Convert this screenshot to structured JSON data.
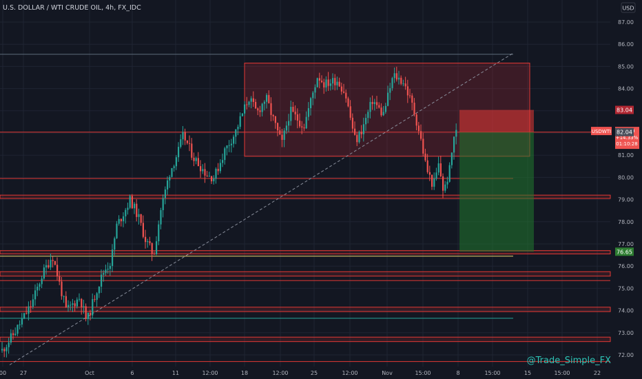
{
  "header": {
    "title": "U.S. DOLLAR / WTI CRUDE OIL, 4h, FX_IDC",
    "currency_button": "USD"
  },
  "watermark": "@Trade_Simple_FX",
  "colors": {
    "background": "#131722",
    "grid": "#1f2433",
    "axis_text": "#b2b5be",
    "up": "#26a69a",
    "down": "#ef5350",
    "level_line": "#e53935",
    "yellow_line": "#f5d76e",
    "trend_line": "#8a8f9c",
    "range_box_fill": "rgba(178,40,51,0.25)",
    "stop_zone_fill": "rgba(229,57,53,0.55)",
    "target_zone_fill": "rgba(33,120,45,0.55)",
    "watermark": "#2ec4b6"
  },
  "chart_data": {
    "type": "candlestick",
    "symbol": "USDWTI",
    "timeframe": "4h",
    "ylim": [
      71.5,
      87.6
    ],
    "y_ticks": [
      "72.00",
      "73.00",
      "74.00",
      "75.00",
      "76.00",
      "77.00",
      "78.00",
      "79.00",
      "80.00",
      "81.00",
      "82.00",
      "83.00",
      "84.00",
      "85.00",
      "86.00",
      "87.00"
    ],
    "x_tick_labels": [
      "00",
      "27",
      "Oct",
      "6",
      "11",
      "12:00",
      "18",
      "12:00",
      "25",
      "12:00",
      "Nov",
      "15:00",
      "8",
      "15:00",
      "15",
      "15:00",
      "22"
    ],
    "price_labels": {
      "stop": "83.04",
      "last_symbol": "USDWTI",
      "last_price": "82.09",
      "change": "+14.33%",
      "countdown": "01:10:28",
      "entry": "82.04",
      "target": "76.65"
    },
    "horizontal_levels": [
      {
        "y_from": 85.55,
        "y_to": 85.55,
        "style": "thin-gray"
      },
      {
        "y_from": 82.04,
        "y_to": 82.04,
        "style": "thin-red"
      },
      {
        "y_from": 79.95,
        "y_to": 79.95,
        "style": "thin-red"
      },
      {
        "y_from": 79.05,
        "y_to": 79.2,
        "style": "band"
      },
      {
        "y_from": 76.55,
        "y_to": 76.7,
        "style": "band"
      },
      {
        "y_from": 76.45,
        "y_to": 76.45,
        "style": "yellow"
      },
      {
        "y_from": 75.55,
        "y_to": 75.75,
        "style": "band"
      },
      {
        "y_from": 75.35,
        "y_to": 75.35,
        "style": "thin-red"
      },
      {
        "y_from": 73.95,
        "y_to": 74.15,
        "style": "band"
      },
      {
        "y_from": 73.65,
        "y_to": 73.65,
        "style": "thin-teal"
      },
      {
        "y_from": 72.6,
        "y_to": 72.8,
        "style": "band"
      },
      {
        "y_from": 71.7,
        "y_to": 71.7,
        "style": "thin-red"
      }
    ],
    "range_box": {
      "price_high": 85.15,
      "price_low": 80.95
    },
    "trade_setup": {
      "stop": 83.04,
      "entry": 82.04,
      "target": 76.65
    },
    "trend_line": {
      "from_price": 71.55,
      "to_price": 85.6
    }
  }
}
